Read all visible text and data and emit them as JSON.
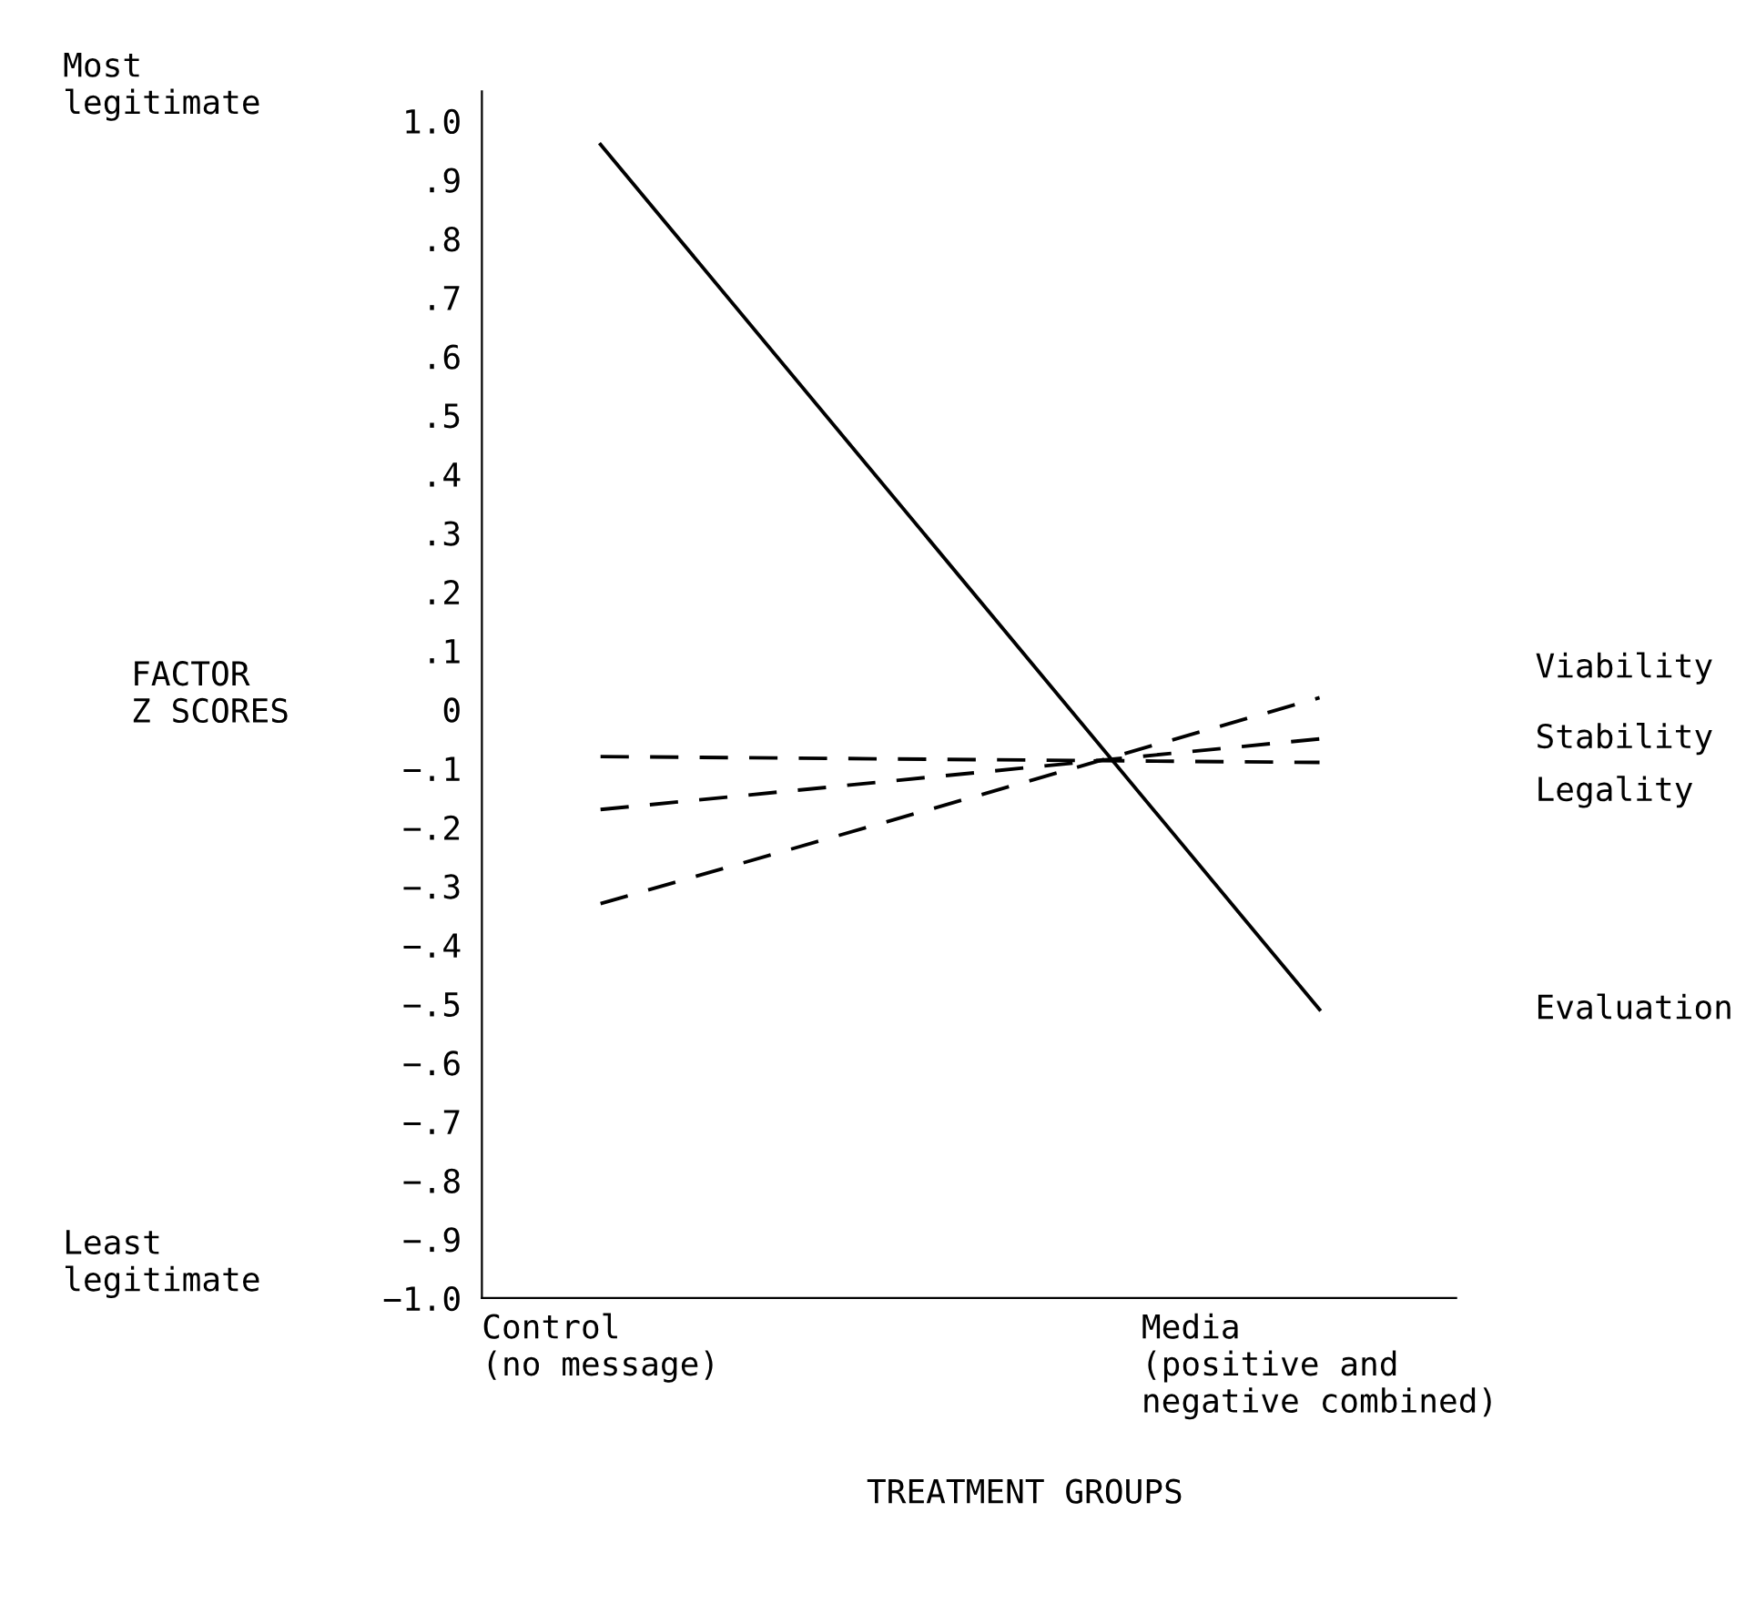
{
  "chart_data": {
    "type": "line",
    "xlabel": "TREATMENT GROUPS",
    "ylabel": "FACTOR\nZ SCORES",
    "categories": [
      "Control\n(no message)",
      "Media\n(positive and\nnegative combined)"
    ],
    "series": [
      {
        "name": "Viability",
        "color": "#000000",
        "line_style": "dashed",
        "values": [
          -0.33,
          0.02
        ]
      },
      {
        "name": "Stability",
        "color": "#000000",
        "line_style": "dashed",
        "values": [
          -0.17,
          -0.05
        ]
      },
      {
        "name": "Legality",
        "color": "#000000",
        "line_style": "dashed",
        "values": [
          -0.08,
          -0.09
        ]
      },
      {
        "name": "Evaluation",
        "color": "#000000",
        "line_style": "solid",
        "values": [
          0.96,
          -0.51
        ]
      }
    ],
    "ylim": [
      -1.0,
      1.05
    ],
    "yticks": [
      {
        "value": 1.0,
        "label": "1.0"
      },
      {
        "value": 0.9,
        "label": ".9"
      },
      {
        "value": 0.8,
        "label": ".8"
      },
      {
        "value": 0.7,
        "label": ".7"
      },
      {
        "value": 0.6,
        "label": ".6"
      },
      {
        "value": 0.5,
        "label": ".5"
      },
      {
        "value": 0.4,
        "label": ".4"
      },
      {
        "value": 0.3,
        "label": ".3"
      },
      {
        "value": 0.2,
        "label": ".2"
      },
      {
        "value": 0.1,
        "label": ".1"
      },
      0,
      {
        "value": -0.1,
        "label": "−.1"
      },
      {
        "value": -0.2,
        "label": "−.2"
      },
      {
        "value": -0.3,
        "label": "−.3"
      },
      {
        "value": -0.4,
        "label": "−.4"
      },
      {
        "value": -0.5,
        "label": "−.5"
      },
      {
        "value": -0.6,
        "label": "−.6"
      },
      {
        "value": -0.7,
        "label": "−.7"
      },
      {
        "value": -0.8,
        "label": "−.8"
      },
      {
        "value": -0.9,
        "label": "−.9"
      },
      {
        "value": -1.0,
        "label": "−1.0"
      }
    ],
    "annotations": [
      "Most\nlegitimate",
      "Least\nlegitimate"
    ],
    "grid": false,
    "legend": false,
    "marker": "none"
  }
}
